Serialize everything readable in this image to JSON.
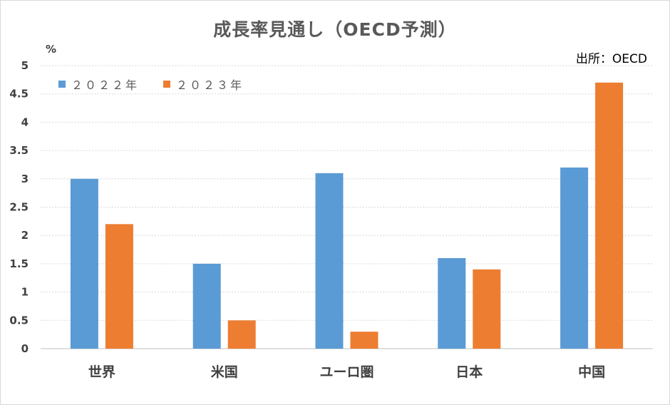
{
  "chart_data": {
    "type": "bar",
    "title": "成長率見通し（OECD予測）",
    "ylabel": "%",
    "source": "出所：OECD",
    "categories": [
      "世界",
      "米国",
      "ユーロ圏",
      "日本",
      "中国"
    ],
    "series": [
      {
        "name": "２０２２年",
        "values": [
          3.0,
          1.5,
          3.1,
          1.6,
          3.2
        ],
        "color": "#5b9bd5"
      },
      {
        "name": "２０２３年",
        "values": [
          2.2,
          0.5,
          0.3,
          1.4,
          4.7
        ],
        "color": "#ed7d31"
      }
    ],
    "ylim": [
      0,
      5
    ],
    "yticks": [
      "0",
      "0.5",
      "1",
      "1.5",
      "2",
      "2.5",
      "3",
      "3.5",
      "4",
      "4.5",
      "5"
    ],
    "grid": true,
    "legend_position": "top-left"
  }
}
